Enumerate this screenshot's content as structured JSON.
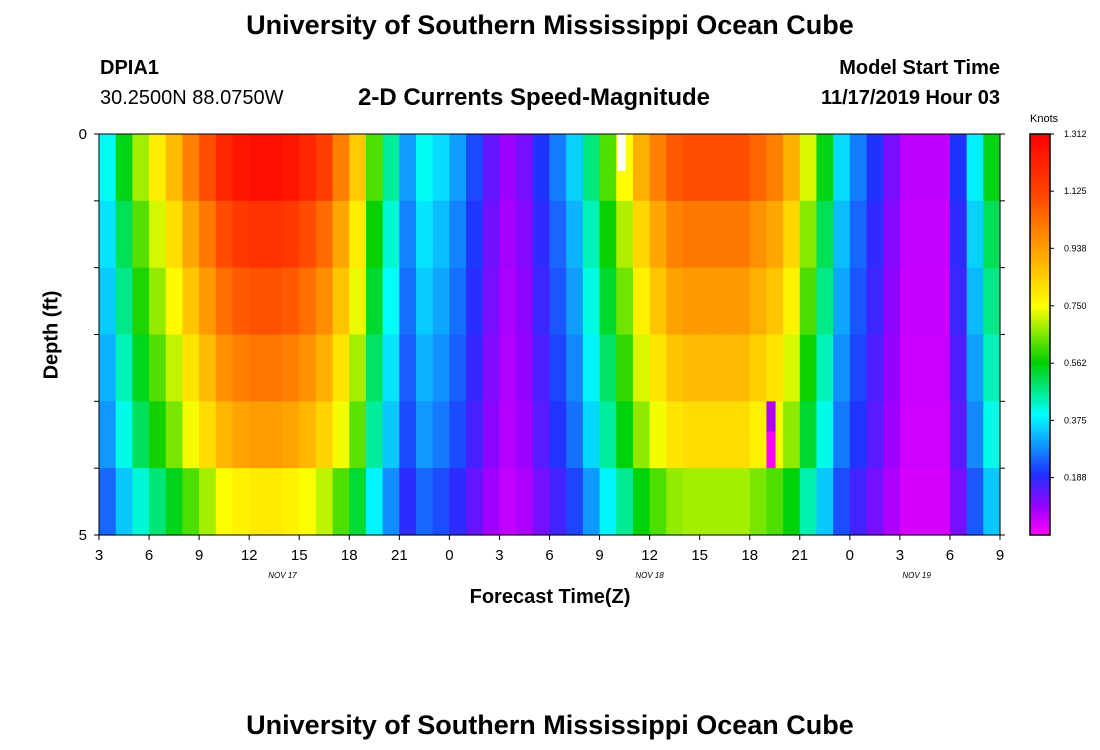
{
  "header": {
    "title_top": "University of Southern Mississippi Ocean Cube",
    "title_bottom": "University of Southern Mississippi Ocean Cube",
    "station_id": "DPIA1",
    "station_coords": "30.2500N 88.0750W",
    "chart_title": "2-D Currents Speed-Magnitude",
    "model_start_label": "Model Start Time",
    "model_start_value": "11/17/2019 Hour 03"
  },
  "chart_data": {
    "type": "heatmap",
    "title": "2-D Currents Speed-Magnitude",
    "xlabel": "Forecast Time(Z)",
    "ylabel": "Depth (ft)",
    "x_tick_labels": [
      "3",
      "6",
      "9",
      "12",
      "15",
      "18",
      "21",
      "0",
      "3",
      "6",
      "9",
      "12",
      "15",
      "18",
      "21",
      "0",
      "3",
      "6",
      "9"
    ],
    "date_labels": [
      {
        "label": "NOV 17",
        "forecast_hour": 11
      },
      {
        "label": "NOV 18",
        "forecast_hour": 33
      },
      {
        "label": "NOV 19",
        "forecast_hour": 49
      }
    ],
    "y_tick_labels": [
      "0",
      "5"
    ],
    "ylim": [
      0,
      5
    ],
    "depth_rows": 5,
    "hours": 54,
    "colorbar": {
      "unit": "Knots",
      "min": 0.0,
      "max": 1.312,
      "tick_labels": [
        "1.312",
        "1.125",
        "0.938",
        "0.750",
        "0.562",
        "0.375",
        "0.188"
      ],
      "tick_values": [
        1.312,
        1.125,
        0.938,
        0.75,
        0.562,
        0.375,
        0.188
      ]
    },
    "profile_by_hour": [
      0.4,
      0.55,
      0.68,
      0.78,
      0.88,
      1.0,
      1.1,
      1.2,
      1.25,
      1.27,
      1.27,
      1.25,
      1.2,
      1.13,
      1.0,
      0.85,
      0.62,
      0.46,
      0.3,
      0.4,
      0.36,
      0.3,
      0.22,
      0.14,
      0.09,
      0.12,
      0.2,
      0.27,
      0.35,
      0.48,
      0.62,
      0.75,
      0.9,
      1.0,
      1.08,
      1.1,
      1.1,
      1.1,
      1.1,
      1.05,
      1.0,
      0.9,
      0.72,
      0.55,
      0.36,
      0.27,
      0.2,
      0.12,
      0.06,
      0.06,
      0.06,
      0.2,
      0.38,
      0.55
    ],
    "depth_factors": [
      1.0,
      0.92,
      0.86,
      0.8,
      0.74,
      0.62
    ],
    "white_marker": {
      "forecast_hour": 31,
      "depth_row": 0
    },
    "magenta_marker": {
      "forecast_hour": 40,
      "depth_rows": [
        4,
        5
      ]
    }
  }
}
